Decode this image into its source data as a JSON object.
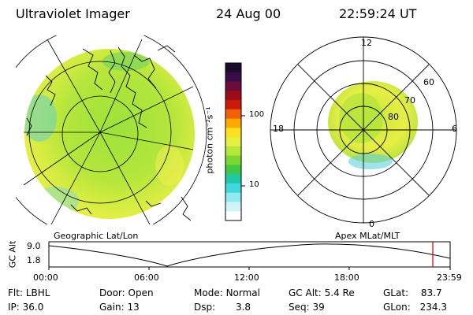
{
  "header": {
    "instrument": "Ultraviolet Imager",
    "date": "24 Aug 00",
    "time": "22:59:24 UT"
  },
  "left_panel": {
    "caption": "Geographic Lat/Lon"
  },
  "right_panel": {
    "caption": "Apex MLat/MLT",
    "mlt_labels": [
      "12",
      "18",
      "6",
      "0"
    ],
    "lat_labels": [
      "60",
      "70",
      "80"
    ]
  },
  "colorbar": {
    "unit_label": "photon cm⁻²s⁻¹",
    "ticks": [
      "100",
      "10"
    ],
    "colors": [
      "#1a0a2e",
      "#3a0a4a",
      "#6a0c3c",
      "#9c0d1a",
      "#cc1a0a",
      "#f0600a",
      "#ffa800",
      "#ffe020",
      "#e6f040",
      "#b4e838",
      "#7cd830",
      "#40c848",
      "#20c8a8",
      "#40d8e0",
      "#90e8f0",
      "#d0f4f8",
      "#ffffff"
    ]
  },
  "timeline": {
    "ylabel": "GC Alt",
    "y_ticks": [
      "9.0",
      "1.8"
    ],
    "x_ticks": [
      "00:00",
      "06:00",
      "12:00",
      "18:00",
      "23:59"
    ],
    "current_marker_color": "#cc0000"
  },
  "info": {
    "row1": [
      {
        "k": "Flt:",
        "v": "LBHL"
      },
      {
        "k": "Door:",
        "v": "Open"
      },
      {
        "k": "Mode:",
        "v": "Normal"
      },
      {
        "k": "GC Alt:",
        "v": "5.4 Re"
      },
      {
        "k": "GLat:",
        "v": "83.7"
      }
    ],
    "row2": [
      {
        "k": "IP:",
        "v": "36.0"
      },
      {
        "k": "Gain:",
        "v": "13"
      },
      {
        "k": "Dsp:",
        "v": "3.8"
      },
      {
        "k": "Seq:",
        "v": "39"
      },
      {
        "k": "GLon:",
        "v": "234.3"
      }
    ]
  }
}
